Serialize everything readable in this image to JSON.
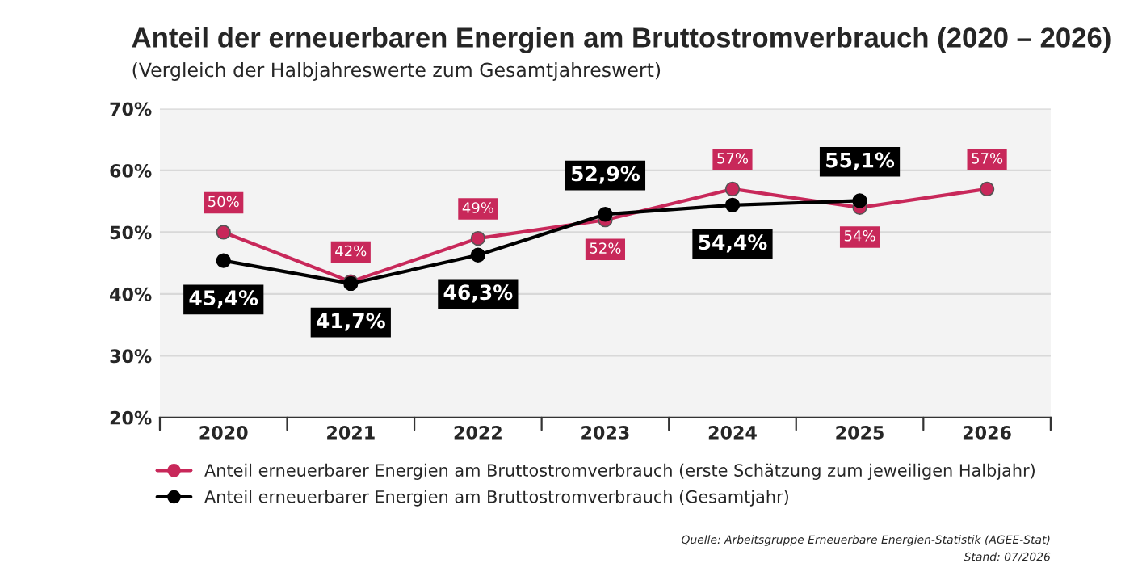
{
  "chart_data": {
    "type": "line",
    "title": "Anteil der erneuerbaren Energien am Bruttostromverbrauch (2020 – 2026)",
    "subtitle": "(Vergleich der Halbjahreswerte zum Gesamtjahreswert)",
    "categories": [
      "2020",
      "2021",
      "2022",
      "2023",
      "2024",
      "2025",
      "2026"
    ],
    "series": [
      {
        "name": "Anteil erneuerbarer Energien am Bruttostromverbrauch (erste Schätzung zum jeweiligen Halbjahr)",
        "color": "#c8285a",
        "values": [
          50,
          42,
          49,
          52,
          57,
          54,
          57
        ],
        "value_labels": [
          "50%",
          "42%",
          "49%",
          "52%",
          "57%",
          "54%",
          "57%"
        ]
      },
      {
        "name": "Anteil erneuerbarer Energien am Bruttostromverbrauch (Gesamtjahr)",
        "color": "#000000",
        "values": [
          45.4,
          41.7,
          46.3,
          52.9,
          54.4,
          55.1,
          null
        ],
        "value_labels": [
          "45,4%",
          "41,7%",
          "46,3%",
          "52,9%",
          "54,4%",
          "55,1%",
          null
        ]
      }
    ],
    "ylim": [
      20,
      70
    ],
    "yticks": [
      {
        "value": 20,
        "label": "20%"
      },
      {
        "value": 30,
        "label": "30%"
      },
      {
        "value": 40,
        "label": "40%"
      },
      {
        "value": 50,
        "label": "50%"
      },
      {
        "value": 60,
        "label": "60%"
      },
      {
        "value": 70,
        "label": "70%"
      }
    ],
    "grid": "y",
    "legend": "bottom",
    "marker": "circle",
    "line_style": "solid",
    "annotations": [
      "Quelle: Arbeitsgruppe Erneuerbare Energien-Statistik (AGEE-Stat)",
      "Stand: 07/2026"
    ]
  }
}
